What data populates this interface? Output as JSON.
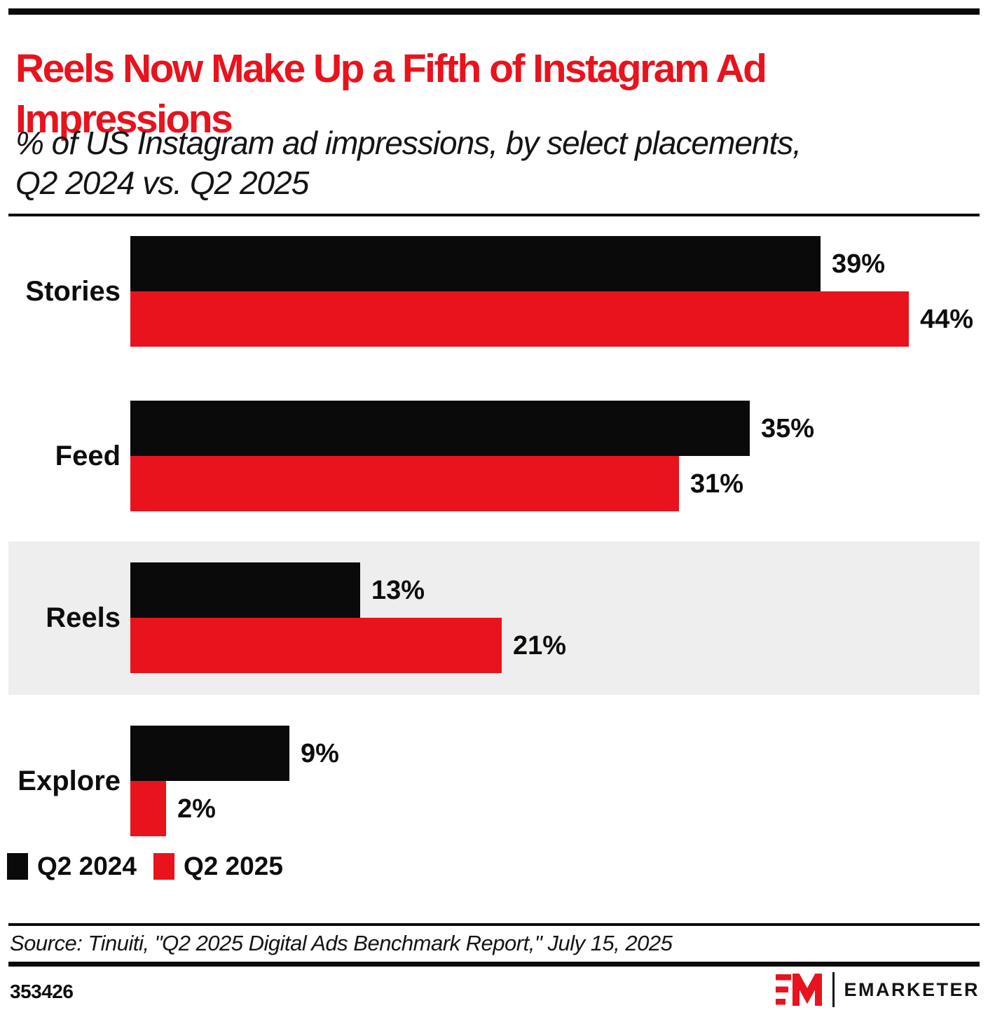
{
  "header": {
    "title": "Reels Now Make Up a Fifth of Instagram Ad Impressions",
    "subtitle": "% of US Instagram ad impressions, by select placements, Q2 2024 vs. Q2 2025"
  },
  "chart_data": {
    "type": "bar",
    "orientation": "horizontal",
    "title": "Reels Now Make Up a Fifth of Instagram Ad Impressions",
    "subtitle": "% of US Instagram ad impressions, by select placements, Q2 2024 vs. Q2 2025",
    "categories": [
      "Stories",
      "Feed",
      "Reels",
      "Explore"
    ],
    "series": [
      {
        "name": "Q2 2024",
        "color": "#0a0a0a",
        "values": [
          39,
          35,
          13,
          9
        ]
      },
      {
        "name": "Q2 2025",
        "color": "#e8131d",
        "values": [
          44,
          31,
          21,
          2
        ]
      }
    ],
    "value_suffix": "%",
    "highlighted_category": "Reels",
    "xlim": [
      0,
      48
    ],
    "grid": false,
    "legend_position": "bottom-left",
    "data_labels": true
  },
  "legend": {
    "items": [
      {
        "label": "Q2 2024",
        "color": "#0a0a0a"
      },
      {
        "label": "Q2 2025",
        "color": "#e8131d"
      }
    ]
  },
  "footer": {
    "source": "Source: Tinuiti, \"Q2 2025 Digital Ads Benchmark Report,\" July 15, 2025",
    "chart_id": "353426",
    "brand": "EMARKETER"
  },
  "colors": {
    "brand_red": "#e8131d",
    "bar_black": "#0a0a0a",
    "row_highlight": "#eeeeee",
    "rule_black": "#0a0a0a"
  }
}
